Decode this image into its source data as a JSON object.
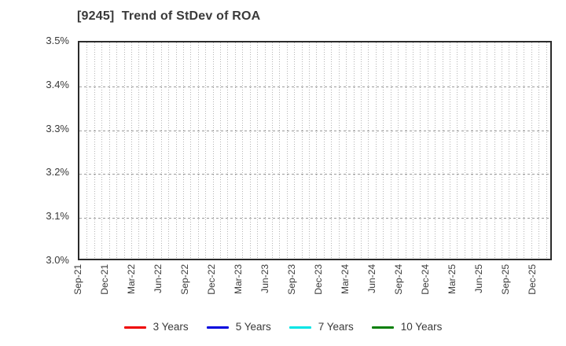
{
  "title": "[9245]  Trend of StDev of ROA",
  "colors": {
    "background": "#ffffff",
    "title_text": "#3a3a3a",
    "axis_text": "#3a3a3a",
    "frame": "#2b2b2b",
    "grid_vertical": "#b4b4b4",
    "grid_horizontal": "#9a9a9a"
  },
  "y_axis": {
    "tick_labels": [
      "3.5%",
      "3.4%",
      "3.3%",
      "3.2%",
      "3.1%",
      "3.0%"
    ]
  },
  "x_axis": {
    "tick_labels": [
      "Sep-21",
      "Dec-21",
      "Mar-22",
      "Jun-22",
      "Sep-22",
      "Dec-22",
      "Mar-23",
      "Jun-23",
      "Sep-23",
      "Dec-23",
      "Mar-24",
      "Jun-24",
      "Sep-24",
      "Dec-24",
      "Mar-25",
      "Jun-25",
      "Sep-25",
      "Dec-25"
    ]
  },
  "legend": {
    "items": [
      {
        "label": "3 Years",
        "color": "#ee0000"
      },
      {
        "label": "5 Years",
        "color": "#0000dd"
      },
      {
        "label": "7 Years",
        "color": "#00e5e5"
      },
      {
        "label": "10 Years",
        "color": "#067f06"
      }
    ]
  },
  "chart_data": {
    "type": "line",
    "title": "[9245]  Trend of StDev of ROA",
    "x_categories": [
      "Sep-21",
      "Dec-21",
      "Mar-22",
      "Jun-22",
      "Sep-22",
      "Dec-22",
      "Mar-23",
      "Jun-23",
      "Sep-23",
      "Dec-23",
      "Mar-24",
      "Jun-24",
      "Sep-24",
      "Dec-24",
      "Mar-25",
      "Jun-25",
      "Sep-25",
      "Dec-25"
    ],
    "xlabel": "",
    "ylabel": "",
    "ylim": [
      3.0,
      3.5
    ],
    "y_tick_labels": [
      "3.0%",
      "3.1%",
      "3.2%",
      "3.3%",
      "3.4%",
      "3.5%"
    ],
    "grid": true,
    "legend_position": "bottom",
    "series": [
      {
        "name": "3 Years",
        "color": "#ee0000",
        "values": []
      },
      {
        "name": "5 Years",
        "color": "#0000dd",
        "values": []
      },
      {
        "name": "7 Years",
        "color": "#00e5e5",
        "values": []
      },
      {
        "name": "10 Years",
        "color": "#067f06",
        "values": []
      }
    ],
    "note": "Plot area is empty - no data points are drawn for any series"
  }
}
